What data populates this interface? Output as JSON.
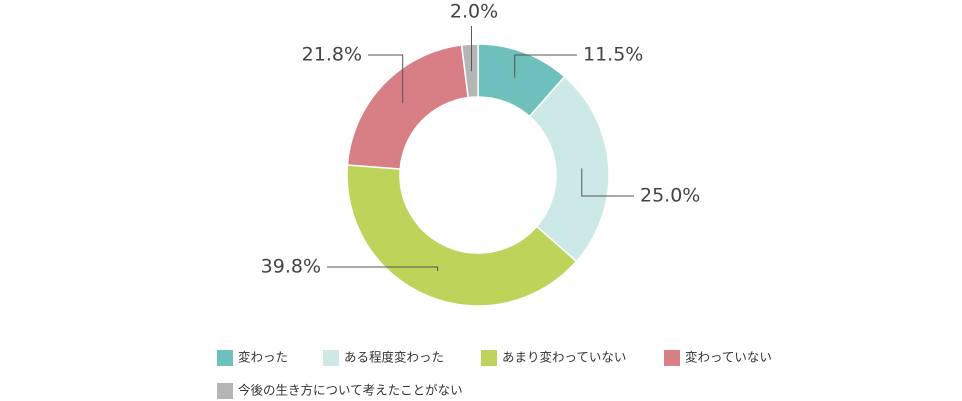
{
  "chart_data": {
    "type": "donut",
    "categories": [
      "変わった",
      "ある程度変わった",
      "あまり変わっていない",
      "変わっていない",
      "今後の生き方について考えたことがない"
    ],
    "values": [
      11.5,
      25.0,
      39.8,
      21.8,
      2.0
    ],
    "value_labels": [
      "11.5%",
      "25.0%",
      "39.8%",
      "21.8%",
      "2.0%"
    ],
    "colors": [
      "#6dc0bc",
      "#cde9e7",
      "#bdd35a",
      "#d77f85",
      "#b5b5b5"
    ]
  }
}
